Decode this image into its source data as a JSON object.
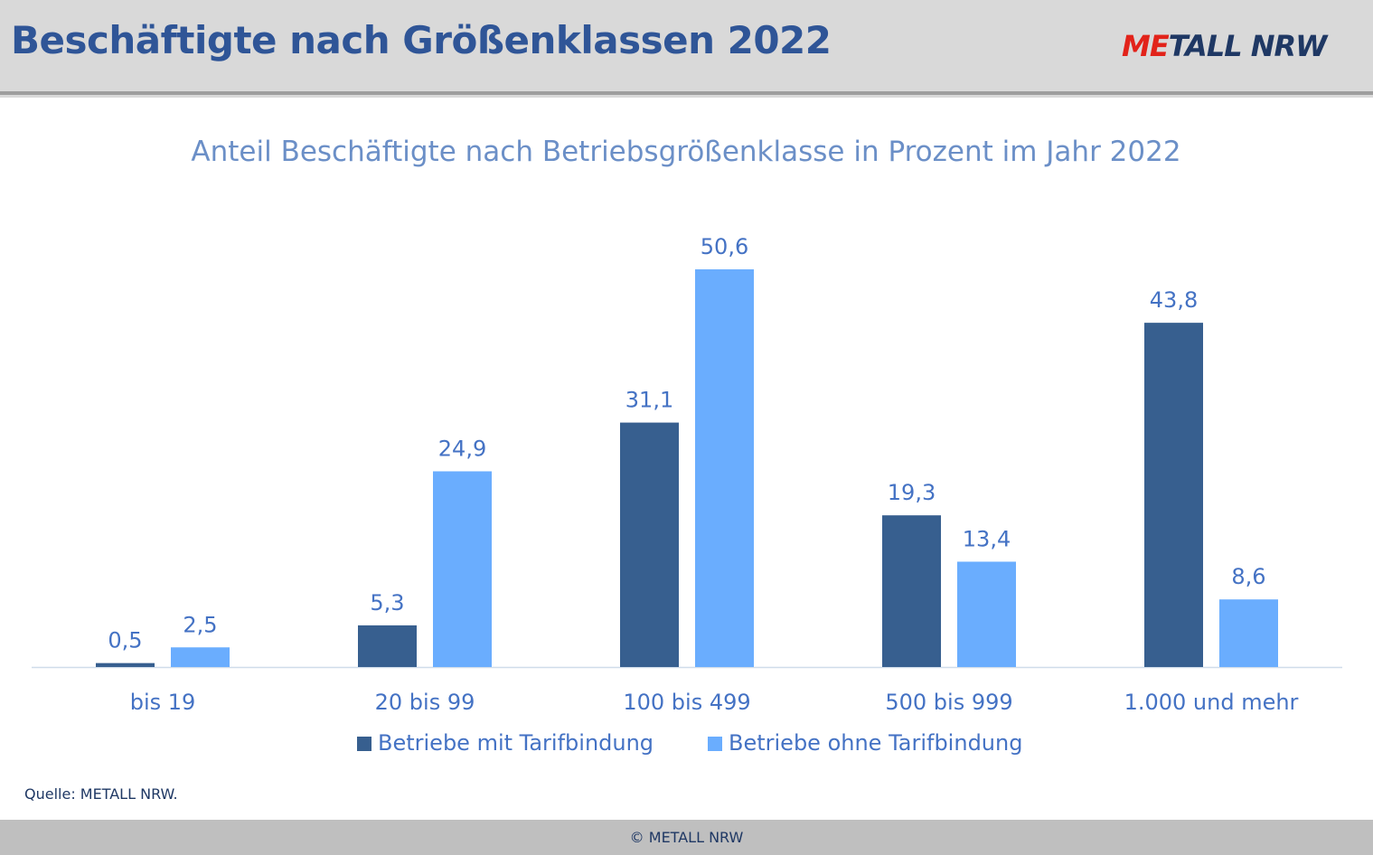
{
  "header": {
    "title": "Beschäftigte nach Größenklassen 2022",
    "logo_accent": "ME",
    "logo_rest": "TALL NRW"
  },
  "chart_data": {
    "type": "bar",
    "title": "Anteil Beschäftigte nach Betriebsgrößenklasse in Prozent im Jahr 2022",
    "categories": [
      "bis 19",
      "20 bis 99",
      "100 bis 499",
      "500 bis 999",
      "1.000 und mehr"
    ],
    "series": [
      {
        "name": "Betriebe mit Tarifbindung",
        "values": [
          0.5,
          5.3,
          31.1,
          19.3,
          43.8
        ],
        "labels": [
          "0,5",
          "5,3",
          "31,1",
          "19,3",
          "43,8"
        ],
        "color": "#375f8f"
      },
      {
        "name": "Betriebe ohne Tarifbindung",
        "values": [
          2.5,
          24.9,
          50.6,
          13.4,
          8.6
        ],
        "labels": [
          "2,5",
          "24,9",
          "50,6",
          "13,4",
          "8,6"
        ],
        "color": "#6aadfe"
      }
    ],
    "ylim": [
      0,
      50.6
    ],
    "grid": false,
    "legend_position": "bottom"
  },
  "source_text": "Quelle: METALL NRW.",
  "footer_text": "© METALL NRW"
}
